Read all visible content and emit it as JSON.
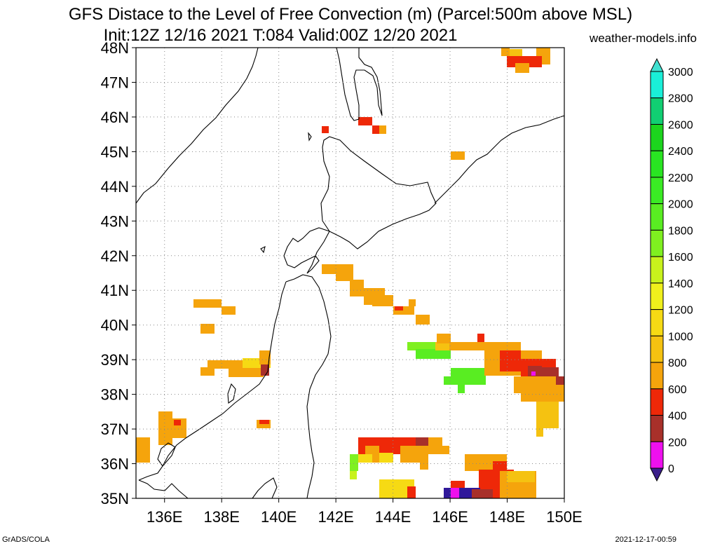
{
  "title_line1": "GFS Distace to the Level of Free Convection (m) (Parcel:500m above MSL)",
  "title_line2": "Init:12Z 12/16 2021 T:084 Valid:00Z 12/20 2021",
  "site": "weather-models.info",
  "footer_left": "GrADS/COLA",
  "footer_right": "2021-12-17-00:59",
  "lat_labels": [
    "48N",
    "47N",
    "46N",
    "45N",
    "44N",
    "43N",
    "42N",
    "41N",
    "40N",
    "39N",
    "38N",
    "37N",
    "36N",
    "35N"
  ],
  "lon_labels": [
    "136E",
    "138E",
    "140E",
    "142E",
    "144E",
    "146E",
    "148E",
    "150E"
  ],
  "colorbar": {
    "labels": [
      "3000",
      "2800",
      "2600",
      "2400",
      "2200",
      "2000",
      "1800",
      "1600",
      "1400",
      "1200",
      "1000",
      "800",
      "600",
      "400",
      "200",
      "0"
    ],
    "colors": [
      "#1aefd8",
      "#11cf72",
      "#1cd51e",
      "#29e522",
      "#3aeb24",
      "#59ed22",
      "#7ff020",
      "#c8f21c",
      "#f0f01c",
      "#f6da14",
      "#f5c211",
      "#f5a40c",
      "#ee2808",
      "#a8302a",
      "#ee10ee",
      "#30189a"
    ],
    "top_arrow": "#40e0d0",
    "bottom_arrow": "#3a1f8a"
  }
}
